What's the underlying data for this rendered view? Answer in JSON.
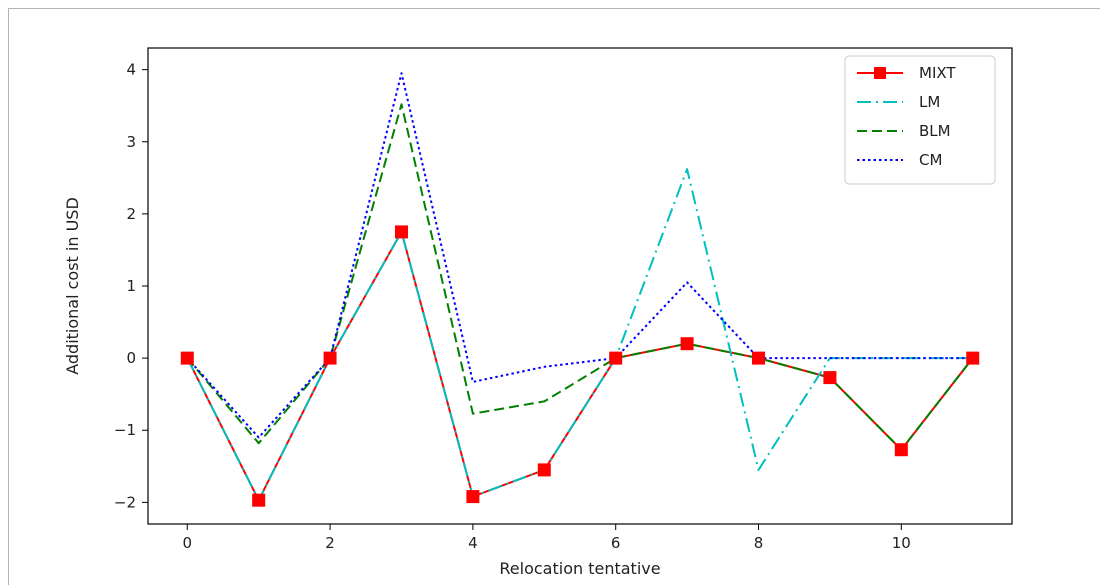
{
  "chart_data": {
    "type": "line",
    "title": "",
    "xlabel": "Relocation tentative",
    "ylabel": "Additional cost in USD",
    "xlim": [
      -0.55,
      11.55
    ],
    "ylim": [
      -2.3,
      4.3
    ],
    "xticks": [
      0,
      2,
      4,
      6,
      8,
      10
    ],
    "yticks": [
      -2,
      -1,
      0,
      1,
      2,
      3,
      4
    ],
    "xtick_labels": [
      "0",
      "2",
      "4",
      "6",
      "8",
      "10"
    ],
    "ytick_labels": [
      "−2",
      "−1",
      "0",
      "1",
      "2",
      "3",
      "4"
    ],
    "grid": false,
    "legend_position": "top-right",
    "x": [
      0,
      1,
      2,
      3,
      4,
      5,
      6,
      7,
      8,
      9,
      10,
      11
    ],
    "series": [
      {
        "name": "MIXT",
        "color": "#ff0000",
        "style": "solid-square-markers",
        "values": [
          0,
          -1.97,
          0,
          1.75,
          -1.92,
          -1.55,
          0,
          0.2,
          0,
          -0.27,
          -1.27,
          0
        ]
      },
      {
        "name": "LM",
        "color": "#00bfbf",
        "style": "dashdot",
        "values": [
          0,
          -1.97,
          0,
          1.75,
          -1.92,
          -1.55,
          0,
          2.62,
          -1.55,
          0,
          0,
          0
        ]
      },
      {
        "name": "BLM",
        "color": "#008000",
        "style": "dashed",
        "values": [
          0,
          -1.18,
          0,
          3.52,
          -0.77,
          -0.6,
          0,
          0.2,
          0,
          -0.27,
          -1.27,
          0
        ]
      },
      {
        "name": "CM",
        "color": "#0000ff",
        "style": "dotted",
        "values": [
          0,
          -1.1,
          0,
          3.95,
          -0.33,
          -0.12,
          0,
          1.05,
          0,
          0,
          0,
          0
        ]
      }
    ]
  }
}
